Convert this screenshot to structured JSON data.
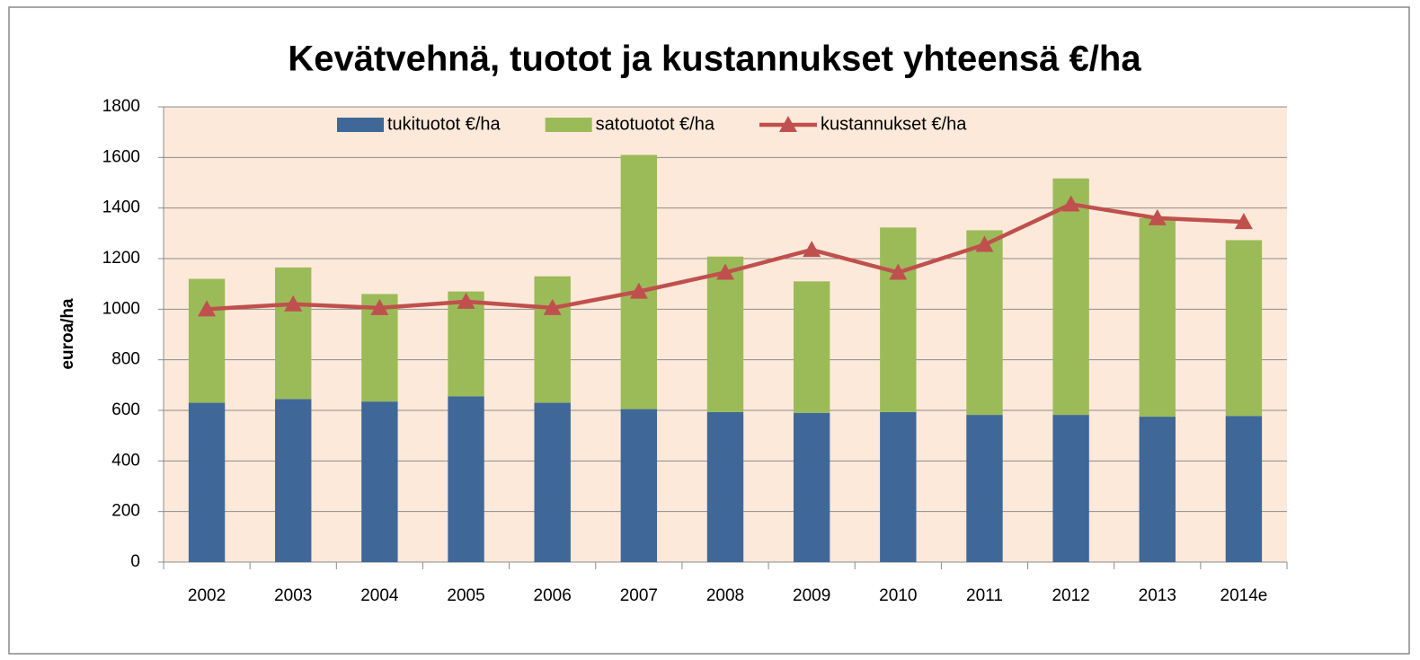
{
  "chart_data": {
    "type": "stacked_bar_line",
    "title": "Kevätvehnä, tuotot ja kustannukset yhteensä €/ha",
    "y_label": "euroa/ha",
    "categories": [
      "2002",
      "2003",
      "2004",
      "2005",
      "2006",
      "2007",
      "2008",
      "2009",
      "2010",
      "2011",
      "2012",
      "2013",
      "2014e"
    ],
    "series": [
      {
        "name": "tukituotot €/ha",
        "type": "bar",
        "color": "#3f6898",
        "values": [
          630,
          645,
          635,
          655,
          630,
          605,
          593,
          590,
          593,
          582,
          582,
          575,
          578
        ]
      },
      {
        "name": "satotuotot €/ha",
        "type": "bar",
        "color": "#9bbb59",
        "values": [
          490,
          520,
          425,
          415,
          500,
          1005,
          615,
          520,
          730,
          730,
          935,
          785,
          695
        ]
      },
      {
        "name": "kustannukset €/ha",
        "type": "line",
        "color": "#c0504d",
        "values": [
          1000,
          1020,
          1005,
          1030,
          1005,
          1070,
          1145,
          1235,
          1145,
          1255,
          1415,
          1360,
          1345
        ]
      }
    ],
    "ylim": [
      0,
      1800
    ],
    "yticks": [
      0,
      200,
      400,
      600,
      800,
      1000,
      1200,
      1400,
      1600,
      1800
    ],
    "grid": true,
    "legend": "top",
    "plot_background": "#fde9d9"
  }
}
